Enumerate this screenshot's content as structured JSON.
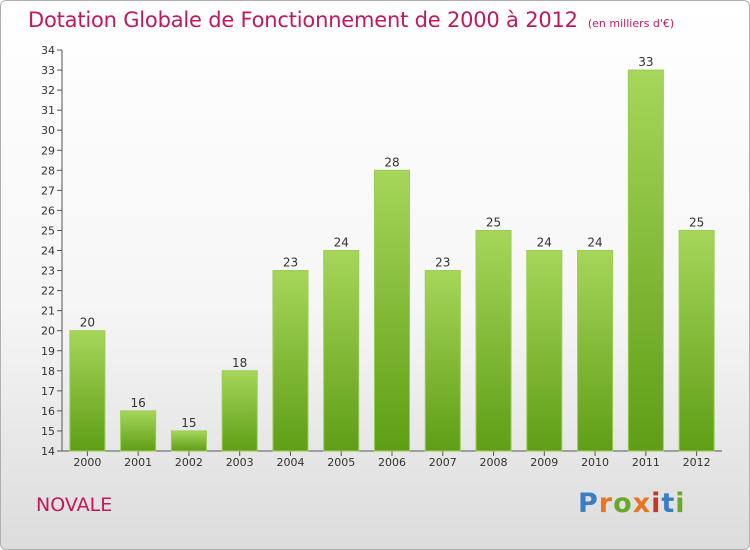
{
  "header": {
    "title": "Dotation Globale de Fonctionnement de 2000 à 2012",
    "subtitle": "(en milliers d'€)"
  },
  "footer": {
    "commune": "NOVALE",
    "logo_letters": [
      "P",
      "r",
      "o",
      "x",
      "i",
      "t",
      "i"
    ]
  },
  "colors": {
    "title": "#c2185b",
    "bar_top": "#a6d65a",
    "bar_bottom": "#5f9e16",
    "logo": [
      "#3b7dc4",
      "#e8741f",
      "#6aa82a",
      "#e8741f",
      "#c0392b",
      "#3b7dc4",
      "#6aa82a"
    ]
  },
  "chart_data": {
    "type": "bar",
    "categories": [
      "2000",
      "2001",
      "2002",
      "2003",
      "2004",
      "2005",
      "2006",
      "2007",
      "2008",
      "2009",
      "2010",
      "2011",
      "2012"
    ],
    "values": [
      20,
      16,
      15,
      18,
      23,
      24,
      28,
      23,
      25,
      24,
      24,
      33,
      25
    ],
    "ylim": [
      14,
      34
    ],
    "yticks": [
      14,
      15,
      16,
      17,
      18,
      19,
      20,
      21,
      22,
      23,
      24,
      25,
      26,
      27,
      28,
      29,
      30,
      31,
      32,
      33,
      34
    ],
    "grid": false,
    "data_labels": true
  }
}
